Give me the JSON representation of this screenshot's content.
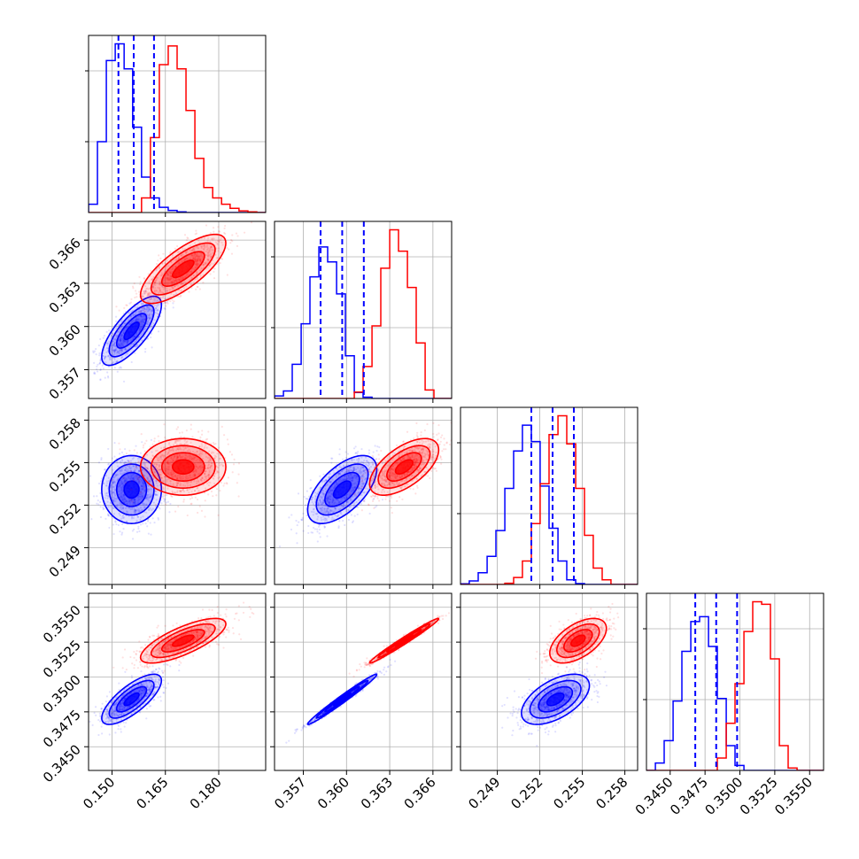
{
  "chart_data": {
    "type": "corner",
    "grid": true,
    "series": [
      {
        "name": "",
        "color": "#0000ff"
      },
      {
        "name": "",
        "color": "#ff0000"
      }
    ],
    "params": [
      {
        "id": "p1",
        "range": [
          0.1434,
          0.1932
        ],
        "ticks": [
          "0.150",
          "0.165",
          "0.180"
        ],
        "tick_values": [
          0.15,
          0.165,
          0.18
        ],
        "hist": {
          "bins": [
            0.1434,
            0.1459,
            0.1484,
            0.1509,
            0.1534,
            0.1558,
            0.1583,
            0.1608,
            0.1633,
            0.1658,
            0.1683,
            0.1708,
            0.1733,
            0.1758,
            0.1783,
            0.1808,
            0.1832,
            0.1857,
            0.1882,
            0.1907,
            0.1932
          ],
          "blue": [
            400,
            3400,
            7300,
            8100,
            6900,
            4100,
            1700,
            700,
            250,
            100,
            30,
            0,
            0,
            0,
            0,
            0,
            0,
            0,
            0,
            0
          ],
          "red": [
            0,
            0,
            0,
            0,
            0,
            0,
            700,
            3600,
            7100,
            8000,
            6900,
            4900,
            2600,
            1200,
            700,
            400,
            200,
            80,
            30,
            0
          ]
        },
        "quantiles_blue": [
          0.1518,
          0.1561,
          0.1618
        ]
      },
      {
        "id": "p2",
        "range": [
          0.355,
          0.3673
        ],
        "ticks": [
          "0.357",
          "0.360",
          "0.363",
          "0.366"
        ],
        "tick_values": [
          0.357,
          0.36,
          0.363,
          0.366
        ],
        "hist": {
          "bins": [
            0.355,
            0.35562,
            0.35623,
            0.35685,
            0.35746,
            0.35808,
            0.35869,
            0.35931,
            0.35992,
            0.36054,
            0.36115,
            0.36177,
            0.36238,
            0.363,
            0.36361,
            0.36423,
            0.36484,
            0.36546,
            0.36607,
            0.36669,
            0.3673
          ],
          "blue": [
            120,
            350,
            1600,
            3500,
            5700,
            7100,
            6400,
            4900,
            2000,
            280,
            60,
            0,
            0,
            0,
            0,
            0,
            0,
            0,
            0,
            0
          ],
          "red": [
            0,
            0,
            0,
            0,
            0,
            0,
            0,
            0,
            0,
            300,
            1500,
            3400,
            6100,
            7900,
            6900,
            5200,
            2600,
            400,
            0,
            0
          ]
        },
        "quantiles_blue": [
          0.3582,
          0.3597,
          0.3612
        ]
      },
      {
        "id": "p3",
        "range": [
          0.2464,
          0.2589
        ],
        "ticks": [
          "0.249",
          "0.252",
          "0.255",
          "0.258"
        ],
        "tick_values": [
          0.249,
          0.252,
          0.255,
          0.258
        ],
        "hist": {
          "bins": [
            0.2464,
            0.24702,
            0.24765,
            0.24828,
            0.2489,
            0.24953,
            0.25015,
            0.25077,
            0.2514,
            0.25202,
            0.25265,
            0.25328,
            0.2539,
            0.25453,
            0.25515,
            0.25577,
            0.2564,
            0.25702,
            0.25765,
            0.25828,
            0.2589
          ],
          "blue": [
            30,
            150,
            500,
            1200,
            2300,
            4100,
            5700,
            6800,
            6100,
            4200,
            2400,
            1000,
            200,
            40,
            0,
            0,
            0,
            0,
            0,
            0
          ],
          "red": [
            0,
            0,
            0,
            0,
            0,
            50,
            300,
            1000,
            2600,
            4300,
            6400,
            7200,
            6000,
            4100,
            2100,
            700,
            200,
            0,
            0,
            0
          ]
        },
        "quantiles_blue": [
          0.2514,
          0.2529,
          0.2544
        ]
      },
      {
        "id": "p4",
        "range": [
          0.3433,
          0.356
        ],
        "ticks": [
          "0.3450",
          "0.3475",
          "0.3500",
          "0.3525",
          "0.3550"
        ],
        "tick_values": [
          0.345,
          0.3475,
          0.35,
          0.3525,
          0.355
        ],
        "hist": {
          "bins": [
            0.3433,
            0.34394,
            0.34457,
            0.34521,
            0.34584,
            0.34648,
            0.34711,
            0.34775,
            0.34838,
            0.34902,
            0.34965,
            0.35029,
            0.35092,
            0.35156,
            0.35219,
            0.35283,
            0.35346,
            0.3541,
            0.35473,
            0.35537,
            0.356
          ],
          "blue": [
            0,
            300,
            1200,
            2800,
            4800,
            6000,
            6200,
            5000,
            2900,
            1000,
            200,
            0,
            0,
            0,
            0,
            0,
            0,
            0,
            0,
            0
          ],
          "red": [
            0,
            0,
            0,
            0,
            0,
            0,
            0,
            0,
            500,
            1900,
            3500,
            5600,
            6800,
            6700,
            4500,
            1000,
            100,
            0,
            0,
            0
          ]
        },
        "quantiles_blue": [
          0.3468,
          0.3483,
          0.3498
        ]
      }
    ],
    "clouds": {
      "blue": {
        "mean": [
          0.1555,
          0.3597,
          0.2531,
          0.3484
        ],
        "std": [
          0.0042,
          0.0012,
          0.0012,
          0.0009
        ],
        "corr": [
          [
            1,
            0.75,
            0.0,
            0.75
          ],
          [
            0.75,
            1,
            0.6,
            0.985
          ],
          [
            0.0,
            0.6,
            1,
            0.55
          ],
          [
            0.75,
            0.985,
            0.55,
            1
          ]
        ]
      },
      "red": {
        "mean": [
          0.17,
          0.364,
          0.2547,
          0.3526
        ],
        "std": [
          0.006,
          0.0012,
          0.001,
          0.0008
        ],
        "corr": [
          [
            1,
            0.75,
            0.0,
            0.75
          ],
          [
            0.75,
            1,
            0.6,
            0.985
          ],
          [
            0.0,
            0.6,
            1,
            0.55
          ],
          [
            0.75,
            0.985,
            0.55,
            1
          ]
        ]
      }
    }
  }
}
